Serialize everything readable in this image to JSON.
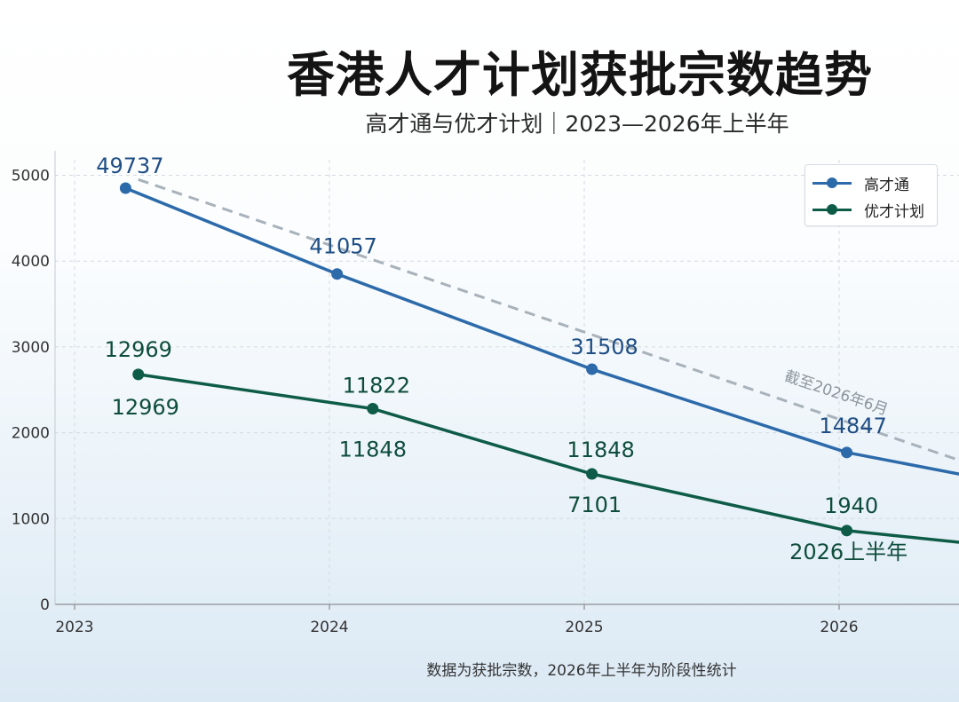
{
  "title": "香港人才计划获批宗数趋势",
  "subtitle": "高才通与优才计划｜2023—2026年上半年",
  "footnote": "数据为获批宗数，2026年上半年为阶段性统计",
  "colors": {
    "series_top": "#2c6aaa",
    "series_bottom": "#0e5c48",
    "trend": "#a8b2ba",
    "label_top": "#1f4e85",
    "label_bottom": "#0e4d3c"
  },
  "chart_data": {
    "type": "line",
    "ylim": [
      0,
      5000
    ],
    "yticks": [
      0,
      1000,
      2000,
      3000,
      4000,
      5000
    ],
    "xticks": [
      "2023",
      "2024",
      "2025",
      "2026"
    ],
    "grid": true,
    "legend_position": "top-right",
    "series": [
      {
        "name": "高才通",
        "x": [
          2023.2,
          2024.03,
          2025.03,
          2026.03,
          2027.03
        ],
        "y": [
          4850,
          3850,
          2740,
          1770,
          1200
        ],
        "labels": [
          "49737",
          "41057",
          "31508",
          "14847"
        ]
      },
      {
        "name": "优才计划",
        "x": [
          2023.25,
          2024.17,
          2025.03,
          2026.03,
          2027.03
        ],
        "y": [
          2680,
          2280,
          1520,
          860,
          550
        ],
        "labels_above": [
          "12969",
          "11822",
          "11848",
          "1940"
        ],
        "labels_below": [
          "12969",
          "11848",
          "7101",
          "2026上半年"
        ]
      }
    ],
    "trend_line": {
      "x": [
        2023.25,
        2026.5
      ],
      "y": [
        4950,
        1650
      ],
      "annotation": "截至2026年6月"
    }
  }
}
